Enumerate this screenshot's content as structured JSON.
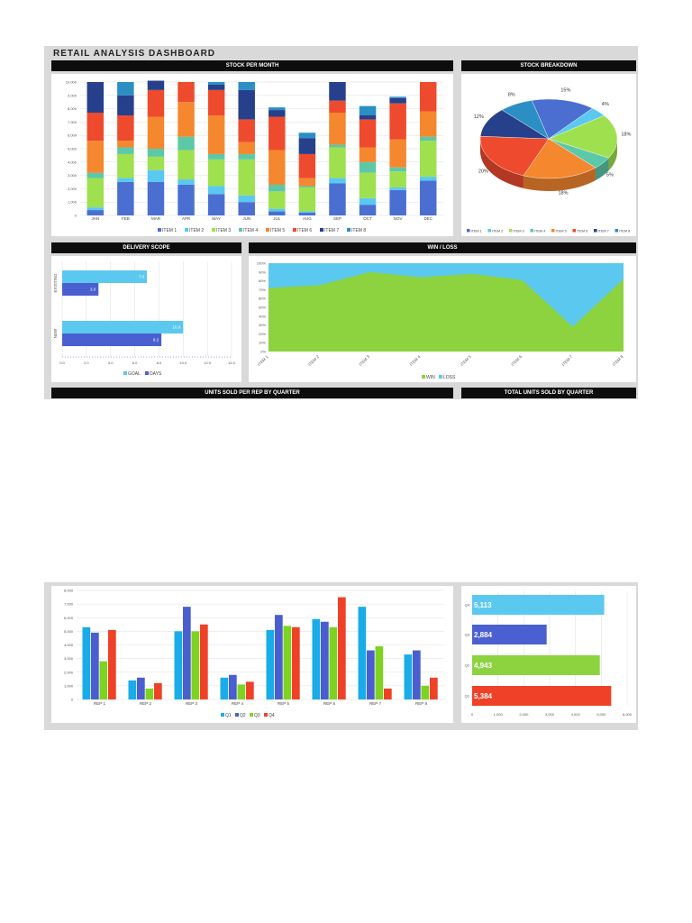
{
  "dashboard": {
    "title": "RETAIL ANALYSIS DASHBOARD",
    "headers": {
      "stock_per_month": "STOCK PER MONTH",
      "stock_breakdown": "STOCK BREAKDOWN",
      "delivery_scope": "DELIVERY SCOPE",
      "win_loss": "WIN / LOSS",
      "units_per_rep": "UNITS SOLD PER REP BY QUARTER",
      "total_units": "TOTAL UNITS SOLD BY QUARTER"
    }
  },
  "colors": {
    "item1": "#4a6fd1",
    "item2": "#5bc8ef",
    "item3": "#9fe04f",
    "item4": "#5cc8a8",
    "item5": "#f5872e",
    "item6": "#ee4b2e",
    "item7": "#27408b",
    "item8": "#2b8fc4",
    "win": "#8cd33f",
    "loss": "#5bc8ef",
    "goal": "#5bc8ef",
    "days": "#4a5fd0",
    "q1": "#1aace8",
    "q2": "#4a5ecf",
    "q3": "#7ed321",
    "q4": "#ee4127"
  },
  "chart_data": [
    {
      "id": "stock_per_month",
      "type": "bar",
      "stacked": true,
      "categories": [
        "JAN",
        "FEB",
        "MAR",
        "APR",
        "MAY",
        "JUN",
        "JUL",
        "AUG",
        "SEP",
        "OCT",
        "NOV",
        "DEC"
      ],
      "ylim": [
        0,
        10000
      ],
      "yticks": [
        "0",
        "1,000",
        "2,000",
        "3,000",
        "4,000",
        "5,000",
        "6,000",
        "7,000",
        "8,000",
        "9,000",
        "10,000"
      ],
      "legend": [
        "ITEM 1",
        "ITEM 2",
        "ITEM 3",
        "ITEM 4",
        "ITEM 5",
        "ITEM 6",
        "ITEM 7",
        "ITEM 8"
      ],
      "series": [
        {
          "name": "ITEM 1",
          "values": [
            400,
            2500,
            2500,
            2300,
            1600,
            1000,
            300,
            200,
            2400,
            800,
            1900,
            2600
          ]
        },
        {
          "name": "ITEM 2",
          "values": [
            200,
            300,
            900,
            400,
            600,
            500,
            200,
            100,
            400,
            500,
            200,
            300
          ]
        },
        {
          "name": "ITEM 3",
          "values": [
            2200,
            1800,
            1000,
            2200,
            2000,
            2700,
            1300,
            1800,
            2300,
            1900,
            1200,
            2700
          ]
        },
        {
          "name": "ITEM 4",
          "values": [
            400,
            500,
            600,
            1000,
            400,
            400,
            500,
            100,
            200,
            800,
            300,
            300
          ]
        },
        {
          "name": "ITEM 5",
          "values": [
            2400,
            500,
            2400,
            2600,
            2900,
            900,
            2600,
            600,
            2400,
            1100,
            2100,
            1900
          ]
        },
        {
          "name": "ITEM 6",
          "values": [
            2100,
            1900,
            2000,
            1500,
            1900,
            1700,
            2500,
            1800,
            900,
            2100,
            2700,
            2200
          ]
        },
        {
          "name": "ITEM 7",
          "values": [
            2300,
            1500,
            700,
            0,
            400,
            2200,
            500,
            1200,
            1400,
            300,
            400,
            0
          ]
        },
        {
          "name": "ITEM 8",
          "values": [
            0,
            1000,
            0,
            0,
            200,
            600,
            200,
            400,
            0,
            700,
            100,
            0
          ]
        }
      ]
    },
    {
      "id": "stock_breakdown",
      "type": "pie",
      "labels": [
        "ITEM 1",
        "ITEM 2",
        "ITEM 3",
        "ITEM 4",
        "ITEM 5",
        "ITEM 6",
        "ITEM 7",
        "ITEM 8"
      ],
      "values": [
        15,
        4,
        18,
        5,
        18,
        20,
        12,
        8
      ],
      "value_labels": [
        "15%",
        "4%",
        "18%",
        "5%",
        "18%",
        "20%",
        "12%",
        "8%"
      ]
    },
    {
      "id": "delivery_scope",
      "type": "bar",
      "orientation": "horizontal",
      "categories": [
        "EXISTING",
        "NEW"
      ],
      "series": [
        {
          "name": "GOAL",
          "values": [
            7.0,
            10.0
          ]
        },
        {
          "name": "DAYS",
          "values": [
            3.0,
            8.2
          ]
        }
      ],
      "value_labels": {
        "GOAL": [
          "7.0",
          "10.0"
        ],
        "DAYS": [
          "3.0",
          "8.2"
        ]
      },
      "xlim": [
        0,
        14
      ],
      "xticks": [
        "0.0",
        "2.0",
        "4.0",
        "6.0",
        "8.0",
        "10.0",
        "12.0",
        "14.0"
      ]
    },
    {
      "id": "win_loss",
      "type": "area",
      "stacked_percent": true,
      "categories": [
        "ITEM 1",
        "ITEM 2",
        "ITEM 3",
        "ITEM 4",
        "ITEM 5",
        "ITEM 6",
        "ITEM 7",
        "ITEM 8"
      ],
      "series": [
        {
          "name": "WIN",
          "values": [
            72,
            75,
            90,
            84,
            88,
            81,
            28,
            82
          ]
        },
        {
          "name": "LOSS",
          "values": [
            28,
            25,
            10,
            16,
            12,
            19,
            72,
            18
          ]
        }
      ],
      "ylim": [
        0,
        100
      ],
      "yticks": [
        "0%",
        "10%",
        "20%",
        "30%",
        "40%",
        "50%",
        "60%",
        "70%",
        "80%",
        "90%",
        "100%"
      ]
    },
    {
      "id": "units_per_rep",
      "type": "bar",
      "categories": [
        "REP 1",
        "REP 2",
        "REP 3",
        "REP 4",
        "REP 5",
        "REP 6",
        "REP 7",
        "REP 8"
      ],
      "series": [
        {
          "name": "Q1",
          "values": [
            5300,
            1400,
            5000,
            1600,
            5100,
            5900,
            6800,
            3300
          ]
        },
        {
          "name": "Q2",
          "values": [
            4900,
            1600,
            6800,
            1800,
            6200,
            5700,
            3600,
            3600
          ]
        },
        {
          "name": "Q3",
          "values": [
            2800,
            800,
            5000,
            1100,
            5400,
            5300,
            3900,
            1000
          ]
        },
        {
          "name": "Q4",
          "values": [
            5100,
            1200,
            5500,
            1300,
            5300,
            7500,
            800,
            1600
          ]
        }
      ],
      "ylim": [
        0,
        8000
      ],
      "yticks": [
        "0",
        "1,000",
        "2,000",
        "3,000",
        "4,000",
        "5,000",
        "6,000",
        "7,000",
        "8,000"
      ]
    },
    {
      "id": "total_units",
      "type": "bar",
      "orientation": "horizontal",
      "categories": [
        "Q4",
        "Q3",
        "Q2",
        "Q1"
      ],
      "values": [
        5113,
        2884,
        4943,
        5384
      ],
      "value_labels": [
        "5,113",
        "2,884",
        "4,943",
        "5,384"
      ],
      "xlim": [
        0,
        6000
      ],
      "xticks": [
        "0",
        "1,000",
        "2,000",
        "3,000",
        "4,000",
        "5,000",
        "6,000"
      ]
    }
  ]
}
